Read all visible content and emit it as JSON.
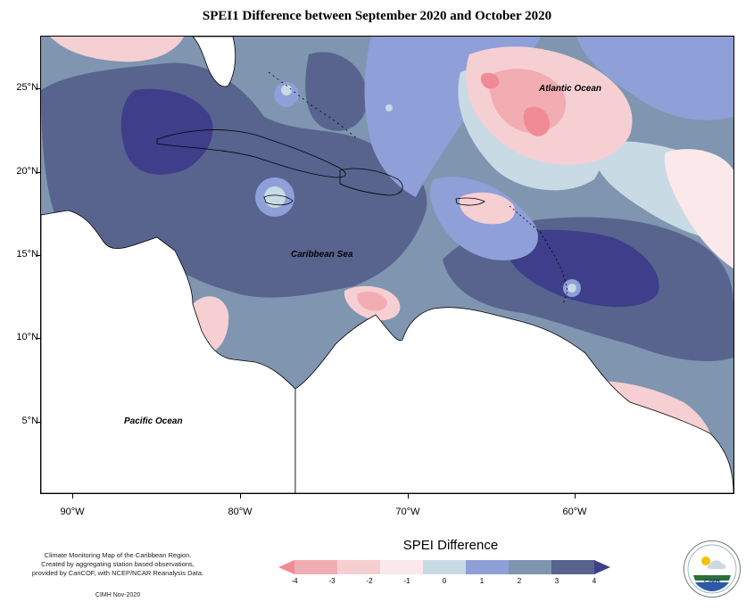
{
  "title": "SPEI1 Difference between September 2020 and October 2020",
  "map": {
    "lat_labels": [
      "25°N",
      "20°N",
      "15°N",
      "10°N",
      "5°N"
    ],
    "lon_labels": [
      "90°W",
      "80°W",
      "70°W",
      "60°W"
    ],
    "places": {
      "atlantic": "Atlantic Ocean",
      "caribbean": "Caribbean Sea",
      "pacific": "Pacific Ocean"
    }
  },
  "legend": {
    "title": "SPEI Difference",
    "ticks": [
      "-4",
      "-3",
      "-2",
      "-1",
      "0",
      "1",
      "2",
      "3",
      "4"
    ],
    "colors": [
      "#f08a94",
      "#f2adb2",
      "#f6cfd3",
      "#fae8ea",
      "#c8dbe4",
      "#8f9fd8",
      "#7f95b0",
      "#58648e",
      "#3f3e8a"
    ]
  },
  "info": {
    "line1": "Climate Monitoring Map of the Caribbean Region.",
    "line2": "Created by aggregating station based observations,",
    "line3": "provided by CariCOF, with NCEP/NCAR Reanalysis Data.",
    "credit": "CIMH Nov-2020"
  },
  "logo": {
    "label": "CIMH"
  }
}
